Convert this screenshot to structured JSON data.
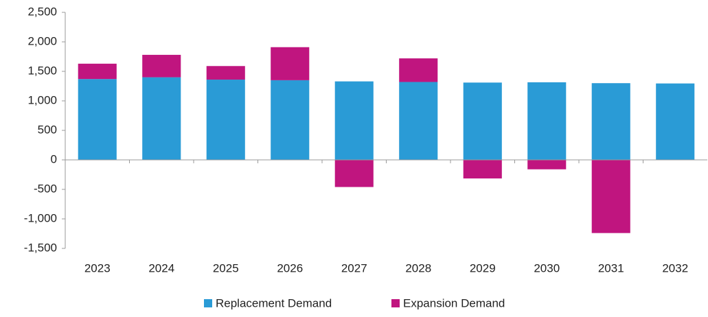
{
  "chart_data": {
    "type": "bar",
    "stacked": true,
    "categories": [
      "2023",
      "2024",
      "2025",
      "2026",
      "2027",
      "2028",
      "2029",
      "2030",
      "2031",
      "2032"
    ],
    "series": [
      {
        "name": "Replacement Demand",
        "color": "#2a9bd6",
        "values": [
          1370,
          1400,
          1360,
          1350,
          1330,
          1320,
          1310,
          1315,
          1300,
          1295
        ]
      },
      {
        "name": "Expansion Demand",
        "color": "#c0157f",
        "values": [
          260,
          380,
          230,
          560,
          -460,
          400,
          -315,
          -160,
          -1240,
          0
        ]
      }
    ],
    "ylim": [
      -1500,
      2500
    ],
    "yticks": [
      {
        "value": -1500,
        "label": "-1,500"
      },
      {
        "value": -1000,
        "label": "-1,000"
      },
      -500,
      0,
      500,
      {
        "value": 1000,
        "label": "1,000"
      },
      {
        "value": 1500,
        "label": "1,500"
      },
      {
        "value": 2000,
        "label": "2,000"
      },
      {
        "value": 2500,
        "label": "2,500"
      }
    ],
    "legend": "bottom"
  }
}
